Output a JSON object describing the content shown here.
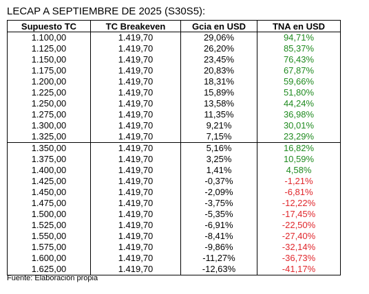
{
  "title": "LECAP A SEPTIEMBRE DE 2025 (S30S5):",
  "columns": [
    "Supuesto TC",
    "TC Breakeven",
    "Gcia en USD",
    "TNA en USD"
  ],
  "colors": {
    "positive": "#1f8a1f",
    "negative": "#e0262b"
  },
  "rows": [
    [
      "1.100,00",
      "1.419,70",
      "29,06%",
      "94,71%"
    ],
    [
      "1.125,00",
      "1.419,70",
      "26,20%",
      "85,37%"
    ],
    [
      "1.150,00",
      "1.419,70",
      "23,45%",
      "76,43%"
    ],
    [
      "1.175,00",
      "1.419,70",
      "20,83%",
      "67,87%"
    ],
    [
      "1.200,00",
      "1.419,70",
      "18,31%",
      "59,66%"
    ],
    [
      "1.225,00",
      "1.419,70",
      "15,89%",
      "51,80%"
    ],
    [
      "1.250,00",
      "1.419,70",
      "13,58%",
      "44,24%"
    ],
    [
      "1.275,00",
      "1.419,70",
      "11,35%",
      "36,98%"
    ],
    [
      "1.300,00",
      "1.419,70",
      "9,21%",
      "30,01%"
    ],
    [
      "1.325,00",
      "1.419,70",
      "7,15%",
      "23,29%"
    ],
    [
      "1.350,00",
      "1.419,70",
      "5,16%",
      "16,82%"
    ],
    [
      "1.375,00",
      "1.419,70",
      "3,25%",
      "10,59%"
    ],
    [
      "1.400,00",
      "1.419,70",
      "1,41%",
      "4,58%"
    ],
    [
      "1.425,00",
      "1.419,70",
      "-0,37%",
      "-1,21%"
    ],
    [
      "1.450,00",
      "1.419,70",
      "-2,09%",
      "-6,81%"
    ],
    [
      "1.475,00",
      "1.419,70",
      "-3,75%",
      "-12,22%"
    ],
    [
      "1.500,00",
      "1.419,70",
      "-5,35%",
      "-17,45%"
    ],
    [
      "1.525,00",
      "1.419,70",
      "-6,91%",
      "-22,50%"
    ],
    [
      "1.550,00",
      "1.419,70",
      "-8,41%",
      "-27,40%"
    ],
    [
      "1.575,00",
      "1.419,70",
      "-9,86%",
      "-32,14%"
    ],
    [
      "1.600,00",
      "1.419,70",
      "-11,27%",
      "-36,73%"
    ],
    [
      "1.625,00",
      "1.419,70",
      "-12,63%",
      "-41,17%"
    ]
  ],
  "footer": "Fuente: Elaboración propia"
}
